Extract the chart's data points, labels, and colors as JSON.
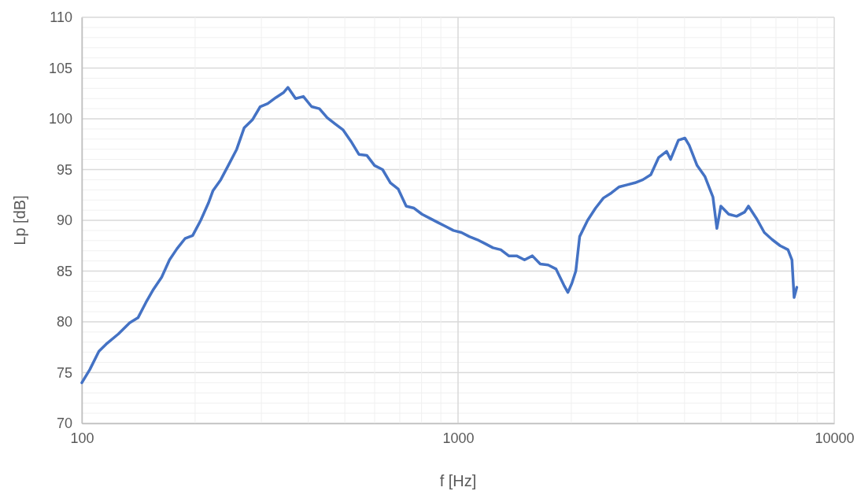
{
  "chart_data": {
    "type": "line",
    "xlabel": "f [Hz]",
    "ylabel": "Lp [dB]",
    "log": "x",
    "grid": true,
    "line_style": "solid",
    "marker": "none",
    "xlim": [
      100,
      10000
    ],
    "ylim": [
      70,
      110
    ],
    "xticks": [
      100,
      {
        "value": 200,
        "label": null
      },
      {
        "value": 300,
        "label": null
      },
      {
        "value": 400,
        "label": null
      },
      {
        "value": 500,
        "label": null
      },
      {
        "value": 600,
        "label": null
      },
      {
        "value": 700,
        "label": null
      },
      {
        "value": 800,
        "label": null
      },
      {
        "value": 900,
        "label": null
      },
      1000,
      {
        "value": 2000,
        "label": null
      },
      {
        "value": 3000,
        "label": null
      },
      {
        "value": 4000,
        "label": null
      },
      {
        "value": 5000,
        "label": null
      },
      {
        "value": 6000,
        "label": null
      },
      {
        "value": 7000,
        "label": null
      },
      {
        "value": 8000,
        "label": null
      },
      {
        "value": 9000,
        "label": null
      },
      10000
    ],
    "yticks": [
      70,
      {
        "value": 71,
        "label": null
      },
      {
        "value": 72,
        "label": null
      },
      {
        "value": 73,
        "label": null
      },
      {
        "value": 74,
        "label": null
      },
      75,
      {
        "value": 76,
        "label": null
      },
      {
        "value": 77,
        "label": null
      },
      {
        "value": 78,
        "label": null
      },
      {
        "value": 79,
        "label": null
      },
      80,
      {
        "value": 81,
        "label": null
      },
      {
        "value": 82,
        "label": null
      },
      {
        "value": 83,
        "label": null
      },
      {
        "value": 84,
        "label": null
      },
      85,
      {
        "value": 86,
        "label": null
      },
      {
        "value": 87,
        "label": null
      },
      {
        "value": 88,
        "label": null
      },
      {
        "value": 89,
        "label": null
      },
      90,
      {
        "value": 91,
        "label": null
      },
      {
        "value": 92,
        "label": null
      },
      {
        "value": 93,
        "label": null
      },
      {
        "value": 94,
        "label": null
      },
      95,
      {
        "value": 96,
        "label": null
      },
      {
        "value": 97,
        "label": null
      },
      {
        "value": 98,
        "label": null
      },
      {
        "value": 99,
        "label": null
      },
      100,
      {
        "value": 101,
        "label": null
      },
      {
        "value": 102,
        "label": null
      },
      {
        "value": 103,
        "label": null
      },
      {
        "value": 104,
        "label": null
      },
      105,
      {
        "value": 106,
        "label": null
      },
      {
        "value": 107,
        "label": null
      },
      {
        "value": 108,
        "label": null
      },
      {
        "value": 109,
        "label": null
      },
      110
    ],
    "series": [
      {
        "color": "#4472c4",
        "x": [
          100,
          105,
          111,
          116,
          125,
          134,
          141,
          148,
          155,
          163,
          171,
          179,
          188,
          197,
          207,
          217,
          223,
          234,
          245,
          258,
          270,
          284,
          298,
          312,
          328,
          344,
          353,
          370,
          388,
          408,
          428,
          449,
          471,
          495,
          519,
          545,
          572,
          600,
          630,
          661,
          693,
          728,
          764,
          802,
          841,
          883,
          927,
          972,
          1021,
          1071,
          1124,
          1180,
          1238,
          1299,
          1364,
          1431,
          1502,
          1576,
          1654,
          1736,
          1822,
          1912,
          1959,
          2007,
          2056,
          2105,
          2210,
          2320,
          2435,
          2556,
          2682,
          2815,
          2954,
          3100,
          3254,
          3415,
          3584,
          3672,
          3853,
          4009,
          4116,
          4320,
          4534,
          4759,
          4876,
          4995,
          5242,
          5502,
          5774,
          5915,
          6210,
          6518,
          6840,
          7180,
          7535,
          7720,
          7822,
          7952
        ],
        "values": [
          74.0,
          75.3,
          77.1,
          77.8,
          78.8,
          79.9,
          80.4,
          81.9,
          83.2,
          84.4,
          86.1,
          87.2,
          88.2,
          88.5,
          90.0,
          91.7,
          92.9,
          94.0,
          95.4,
          97.0,
          99.1,
          99.9,
          101.2,
          101.5,
          102.1,
          102.6,
          103.1,
          102.0,
          102.2,
          101.2,
          101.0,
          100.1,
          99.5,
          98.9,
          97.8,
          96.5,
          96.4,
          95.4,
          95.0,
          93.7,
          93.1,
          91.4,
          91.2,
          90.6,
          90.2,
          89.8,
          89.4,
          89.0,
          88.8,
          88.4,
          88.1,
          87.7,
          87.3,
          87.1,
          86.5,
          86.5,
          86.1,
          86.5,
          85.7,
          85.6,
          85.2,
          83.6,
          82.9,
          83.8,
          85.0,
          88.4,
          90.0,
          91.2,
          92.2,
          92.7,
          93.3,
          93.5,
          93.7,
          94.0,
          94.5,
          96.2,
          96.8,
          96.0,
          97.9,
          98.1,
          97.4,
          95.4,
          94.3,
          92.3,
          89.2,
          91.4,
          90.6,
          90.4,
          90.8,
          91.4,
          90.2,
          88.8,
          88.1,
          87.5,
          87.1,
          86.1,
          82.4,
          83.4
        ]
      }
    ]
  }
}
